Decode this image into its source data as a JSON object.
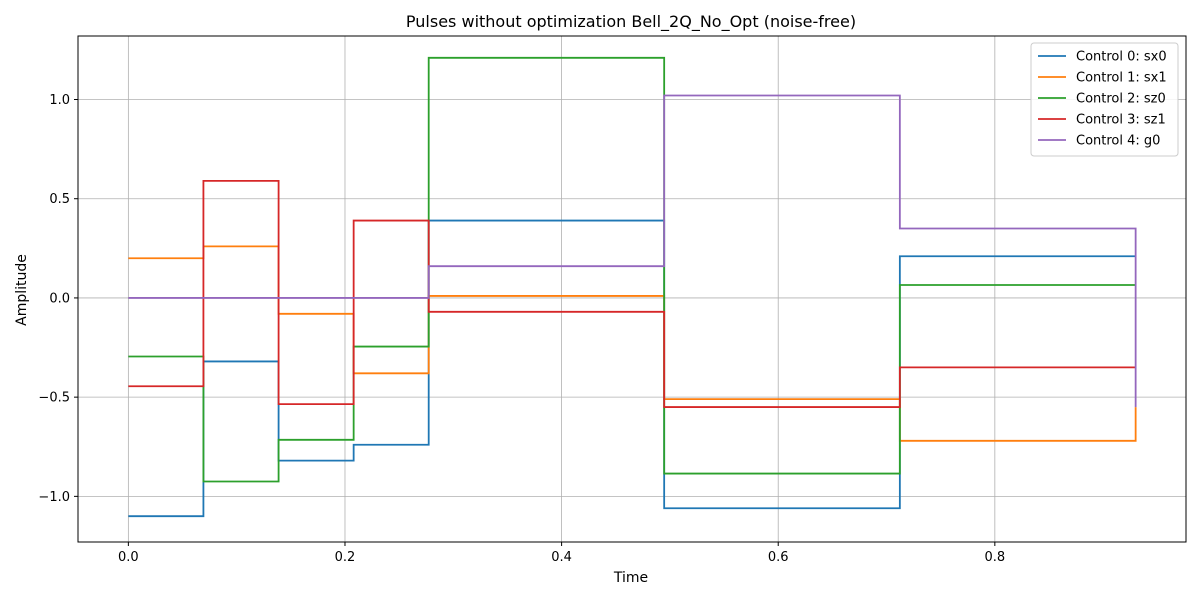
{
  "chart_data": {
    "type": "line",
    "step": "post",
    "title": "Pulses without optimization Bell_2Q_No_Opt (noise-free)",
    "xlabel": "Time",
    "ylabel": "Amplitude",
    "xlim": [
      -0.0465,
      0.9765
    ],
    "ylim": [
      -1.23,
      1.32
    ],
    "xticks": [
      0.0,
      0.2,
      0.4,
      0.6,
      0.8
    ],
    "xtick_labels": [
      "0.0",
      "0.2",
      "0.4",
      "0.6",
      "0.8"
    ],
    "yticks": [
      -1.0,
      -0.5,
      0.0,
      0.5,
      1.0
    ],
    "ytick_labels": [
      "−1.0",
      "−0.5",
      "0.0",
      "0.5",
      "1.0"
    ],
    "grid": true,
    "legend_position": "top-right",
    "x": [
      0.0,
      0.0693,
      0.1387,
      0.208,
      0.2773,
      0.4947,
      0.7123,
      0.93
    ],
    "series": [
      {
        "name": "Control 0: sx0",
        "color": "#1f77b4",
        "values": [
          -1.1,
          -0.32,
          -0.82,
          -0.74,
          0.39,
          -1.06,
          0.21,
          0.21
        ]
      },
      {
        "name": "Control 1: sx1",
        "color": "#ff7f0e",
        "values": [
          0.2,
          0.26,
          -0.08,
          -0.38,
          0.01,
          -0.51,
          -0.72,
          -0.55
        ]
      },
      {
        "name": "Control 2: sz0",
        "color": "#2ca02c",
        "values": [
          -0.295,
          -0.925,
          -0.715,
          -0.245,
          1.21,
          -0.885,
          0.065,
          0.065
        ]
      },
      {
        "name": "Control 3: sz1",
        "color": "#d62728",
        "values": [
          -0.445,
          0.59,
          -0.535,
          0.39,
          -0.07,
          -0.55,
          -0.35,
          -0.35
        ]
      },
      {
        "name": "Control 4: g0",
        "color": "#9467bd",
        "values": [
          0.0,
          0.0,
          0.0,
          0.0,
          0.16,
          1.02,
          0.35,
          -0.55
        ]
      }
    ]
  }
}
